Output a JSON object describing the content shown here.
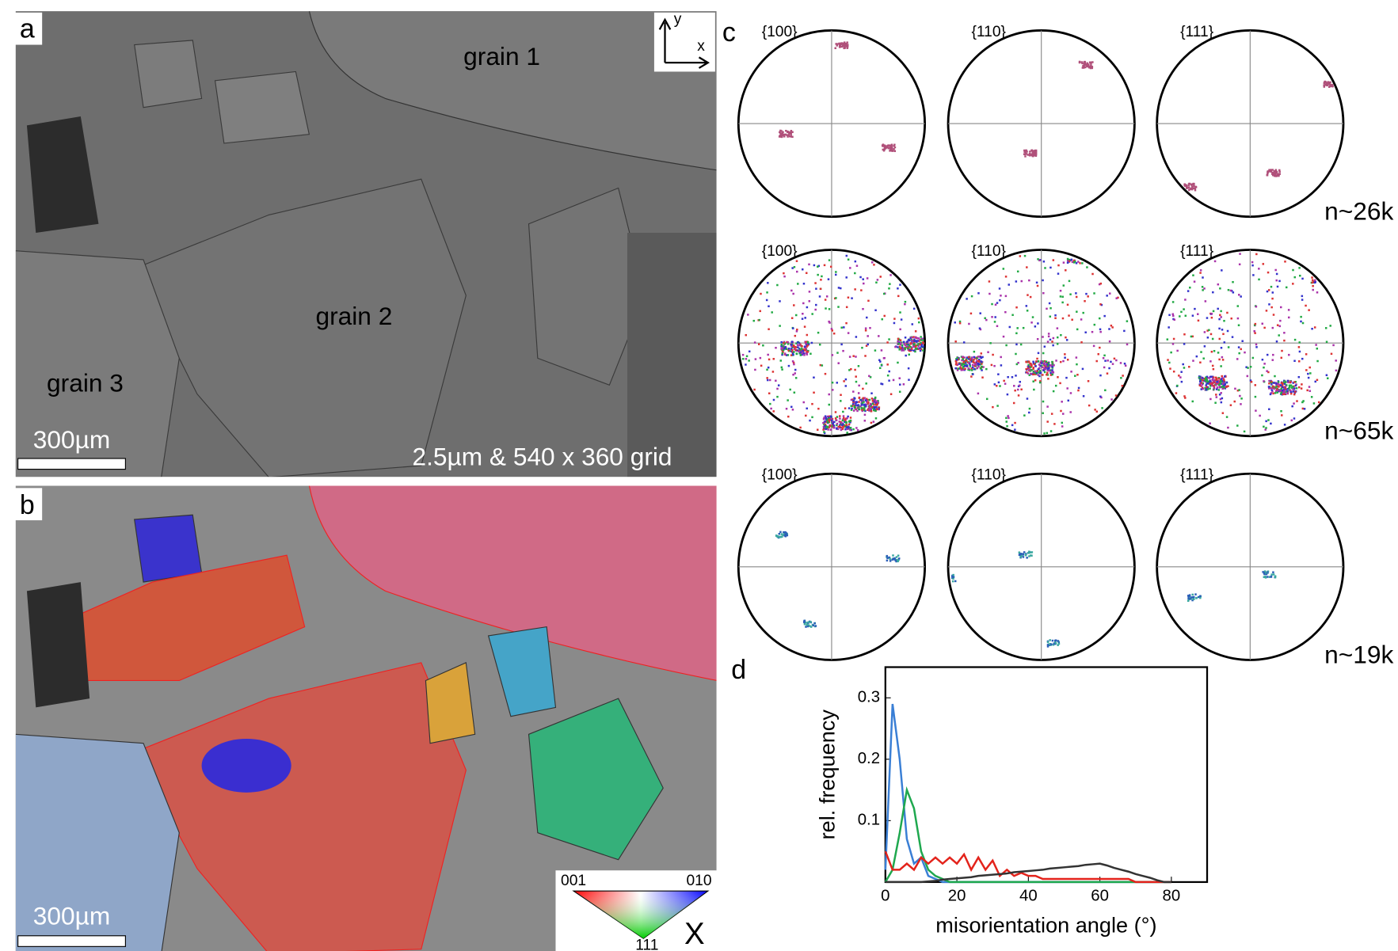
{
  "panels": {
    "a": {
      "label": "a",
      "axes": {
        "y": "y",
        "x": "x"
      },
      "grains": [
        "grain 1",
        "grain 2",
        "grain 3"
      ],
      "scale_bar": "300µm",
      "grid_note": "2.5µm & 540 x 360 grid"
    },
    "b": {
      "label": "b",
      "scale_bar": "300µm",
      "key": {
        "corners": [
          "001",
          "010",
          "111"
        ],
        "direction": "X"
      }
    },
    "c": {
      "label": "c",
      "rows": [
        {
          "planes": [
            "{100}",
            "{110}",
            "{111}"
          ],
          "count": "n~26k"
        },
        {
          "planes": [
            "{100}",
            "{110}",
            "{111}"
          ],
          "count": "n~65k"
        },
        {
          "planes": [
            "{100}",
            "{110}",
            "{111}"
          ],
          "count": "n~19k"
        }
      ]
    },
    "d": {
      "label": "d"
    }
  },
  "chart_data": {
    "type": "line",
    "x_label": "misorientation angle (°)",
    "y_label": "rel. frequency",
    "x": [
      0,
      2,
      4,
      6,
      8,
      10,
      12,
      14,
      16,
      18,
      20,
      22,
      24,
      26,
      28,
      30,
      32,
      34,
      36,
      38,
      40,
      42,
      44,
      46,
      48,
      50,
      52,
      54,
      56,
      58,
      60,
      62,
      64,
      66,
      68,
      70,
      72,
      74,
      76,
      78,
      80
    ],
    "series": [
      {
        "color": "#3a7fd5",
        "values": [
          0.02,
          0.29,
          0.2,
          0.07,
          0.03,
          0.04,
          0.01,
          0.005,
          0,
          0,
          0,
          0,
          0,
          0,
          0,
          0,
          0,
          0,
          0,
          0,
          0,
          0,
          0,
          0,
          0,
          0,
          0,
          0,
          0,
          0,
          0,
          0,
          0,
          0,
          0,
          0,
          0,
          0,
          0,
          0,
          0
        ]
      },
      {
        "color": "#1fa84f",
        "values": [
          0,
          0.02,
          0.08,
          0.15,
          0.12,
          0.05,
          0.02,
          0.01,
          0.005,
          0,
          0,
          0,
          0,
          0,
          0,
          0,
          0,
          0,
          0,
          0,
          0,
          0,
          0,
          0,
          0,
          0,
          0,
          0,
          0,
          0,
          0,
          0,
          0,
          0,
          0,
          0,
          0,
          0,
          0,
          0,
          0
        ]
      },
      {
        "color": "#e3231b",
        "values": [
          0.05,
          0.02,
          0.02,
          0.03,
          0.02,
          0.04,
          0.03,
          0.04,
          0.03,
          0.04,
          0.03,
          0.045,
          0.02,
          0.04,
          0.02,
          0.035,
          0.01,
          0.02,
          0.01,
          0.015,
          0.01,
          0.01,
          0.005,
          0.005,
          0.005,
          0.005,
          0.005,
          0.005,
          0.005,
          0.005,
          0.005,
          0.005,
          0.005,
          0.005,
          0.005,
          0,
          0,
          0,
          0,
          0,
          0
        ]
      },
      {
        "color": "#333333",
        "values": [
          0,
          0,
          0,
          0,
          0,
          0,
          0.001,
          0.002,
          0.004,
          0.005,
          0.006,
          0.007,
          0.008,
          0.01,
          0.011,
          0.012,
          0.013,
          0.014,
          0.016,
          0.017,
          0.018,
          0.019,
          0.02,
          0.022,
          0.023,
          0.024,
          0.025,
          0.026,
          0.028,
          0.029,
          0.03,
          0.027,
          0.023,
          0.02,
          0.017,
          0.013,
          0.01,
          0.007,
          0.003,
          0,
          0
        ]
      }
    ],
    "xlim": [
      0,
      90
    ],
    "xticks": [
      0,
      20,
      40,
      60,
      80
    ],
    "ylim": [
      0,
      0.35
    ],
    "yticks": [
      0.1,
      0.2,
      0.3
    ]
  }
}
